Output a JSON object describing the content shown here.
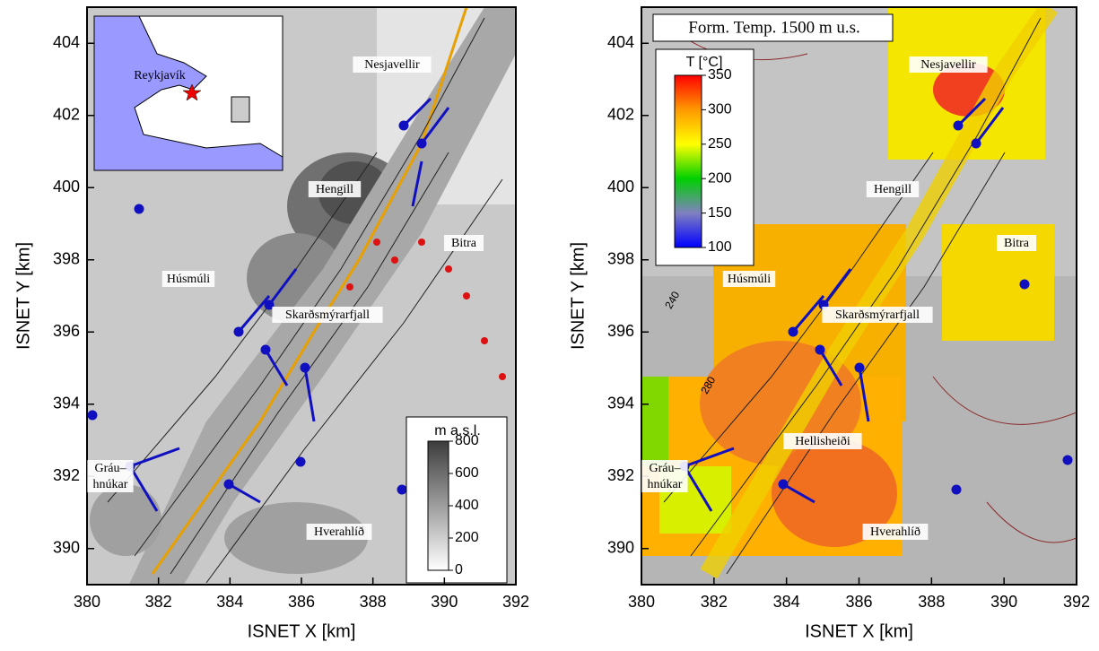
{
  "inset": {
    "label": "Reykjavík"
  },
  "panels": [
    {
      "xlabel": "ISNET X [km]",
      "ylabel": "ISNET Y [km]",
      "xlim": [
        380,
        392
      ],
      "ylim": [
        389,
        405
      ],
      "xticks": [
        380,
        382,
        384,
        386,
        388,
        390,
        392
      ],
      "yticks": [
        390,
        392,
        394,
        396,
        398,
        400,
        402,
        404
      ],
      "places": [
        [
          "Nesjavellir"
        ],
        [
          "Hengill"
        ],
        [
          "Bitra"
        ],
        [
          "Húsmúli"
        ],
        [
          "Skarðsmýrarfjall"
        ],
        [
          "Gráu–",
          "hnúkar"
        ],
        [
          "Hverahlíð"
        ]
      ],
      "colorbar": {
        "title": "m a.s.l.",
        "lim": [
          0,
          800
        ],
        "ticks": [
          0,
          200,
          400,
          600,
          800
        ]
      }
    },
    {
      "title": "Form. Temp. 1500 m u.s.",
      "xlabel": "ISNET X [km]",
      "ylabel": "ISNET Y [km]",
      "xlim": [
        380,
        392
      ],
      "ylim": [
        389,
        405
      ],
      "xticks": [
        380,
        382,
        384,
        386,
        388,
        390,
        392
      ],
      "yticks": [
        390,
        392,
        394,
        396,
        398,
        400,
        402,
        404
      ],
      "places": [
        [
          "Nesjavellir"
        ],
        [
          "Hengill"
        ],
        [
          "Bitra"
        ],
        [
          "Húsmúli"
        ],
        [
          "Skarðsmýrarfjall"
        ],
        [
          "Hellisheiði"
        ],
        [
          "Gráu–",
          "hnúkar"
        ],
        [
          "Hverahlíð"
        ]
      ],
      "contour_labels": [
        "240",
        "280"
      ],
      "colorbar": {
        "title": "T [°C]",
        "lim": [
          100,
          350
        ],
        "ticks": [
          100,
          150,
          200,
          250,
          300,
          350
        ]
      }
    }
  ]
}
